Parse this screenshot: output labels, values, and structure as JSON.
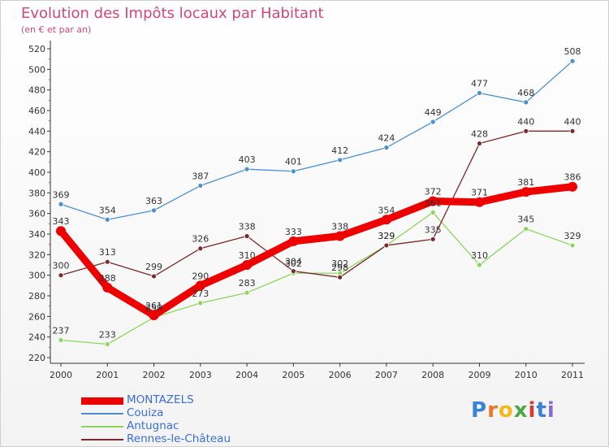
{
  "header": {
    "title": "Evolution des Impôts locaux par Habitant",
    "subtitle": "(en € et par an)"
  },
  "chart_data": {
    "type": "line",
    "title": "Evolution des Impôts locaux par Habitant",
    "subtitle": "(en € et par an)",
    "xlabel": "",
    "ylabel": "",
    "x": [
      "2000",
      "2001",
      "2002",
      "2003",
      "2004",
      "2005",
      "2006",
      "2007",
      "2008",
      "2009",
      "2010",
      "2011"
    ],
    "ylim": [
      220,
      520
    ],
    "ystep": 20,
    "grid": false,
    "legend_position": "bottom-left",
    "series": [
      {
        "name": "MONTAZELS",
        "color": "#ee0000",
        "values": [
          343,
          288,
          261,
          290,
          310,
          333,
          338,
          354,
          372,
          371,
          381,
          386
        ]
      },
      {
        "name": "Couiza",
        "color": "#4a90cf",
        "values": [
          369,
          354,
          363,
          387,
          403,
          401,
          412,
          424,
          449,
          477,
          468,
          508
        ]
      },
      {
        "name": "Antugnac",
        "color": "#8cd65a",
        "values": [
          237,
          233,
          259,
          273,
          283,
          302,
          302,
          329,
          361,
          310,
          345,
          329
        ]
      },
      {
        "name": "Rennes-le-Château",
        "color": "#7a2a2a",
        "values": [
          300,
          313,
          299,
          326,
          338,
          304,
          298,
          329,
          335,
          428,
          440,
          440
        ]
      }
    ]
  },
  "logo": {
    "letters": [
      "P",
      "r",
      "o",
      "x",
      "i",
      "t",
      "i"
    ],
    "colors": [
      "#3a82d8",
      "#e8762b",
      "#f2b81e",
      "#4aa84a",
      "#d83a3a",
      "#3a82d8",
      "#8a6cd0"
    ]
  }
}
